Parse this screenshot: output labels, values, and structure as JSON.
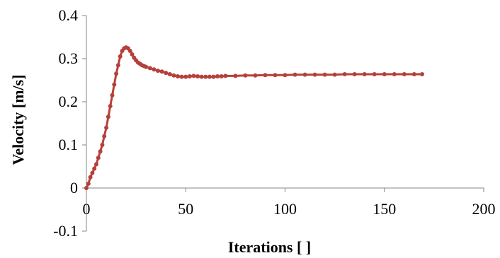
{
  "chart_data": {
    "type": "scatter",
    "title": "",
    "xlabel": "Iterations [ ]",
    "ylabel": "Velocity [m/s]",
    "xlim": [
      0,
      200
    ],
    "ylim": [
      -0.1,
      0.4
    ],
    "xticks": [
      "0",
      "50",
      "100",
      "150",
      "200"
    ],
    "yticks": [
      "-0.1",
      "0",
      "0.1",
      "0.2",
      "0.3",
      "0.4"
    ],
    "grid": false,
    "legend": "none",
    "colors": {
      "series": "#B5403A",
      "axis": "#868686"
    },
    "series": [
      {
        "x": [
          0,
          1,
          2,
          3,
          4,
          5,
          6,
          7,
          8,
          9,
          10,
          11,
          12,
          13,
          14,
          15,
          16,
          17,
          18,
          19,
          20,
          21,
          22,
          23,
          24,
          25,
          26,
          27,
          28,
          29,
          30,
          32,
          34,
          36,
          38,
          40,
          42,
          44,
          46,
          48,
          50,
          52,
          54,
          56,
          58,
          60,
          62,
          64,
          66,
          68,
          70,
          75,
          80,
          85,
          90,
          95,
          100,
          105,
          110,
          115,
          120,
          125,
          130,
          135,
          140,
          145,
          150,
          155,
          160,
          165,
          169
        ],
        "y": [
          0.0,
          0.01,
          0.025,
          0.035,
          0.045,
          0.055,
          0.07,
          0.085,
          0.1,
          0.12,
          0.14,
          0.165,
          0.19,
          0.215,
          0.24,
          0.265,
          0.285,
          0.305,
          0.318,
          0.324,
          0.326,
          0.324,
          0.318,
          0.31,
          0.302,
          0.296,
          0.291,
          0.288,
          0.285,
          0.283,
          0.281,
          0.278,
          0.275,
          0.272,
          0.27,
          0.267,
          0.264,
          0.261,
          0.259,
          0.258,
          0.258,
          0.259,
          0.26,
          0.259,
          0.258,
          0.258,
          0.258,
          0.258,
          0.259,
          0.259,
          0.26,
          0.26,
          0.261,
          0.261,
          0.262,
          0.262,
          0.262,
          0.263,
          0.263,
          0.263,
          0.263,
          0.263,
          0.264,
          0.264,
          0.264,
          0.264,
          0.264,
          0.264,
          0.264,
          0.264,
          0.264
        ]
      }
    ]
  }
}
